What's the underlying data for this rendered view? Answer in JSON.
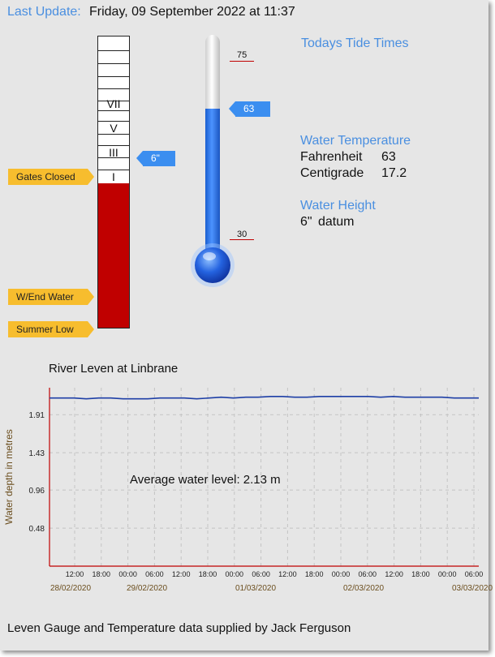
{
  "header": {
    "last_update_label": "Last Update:",
    "last_update_value": "Friday, 09 September 2022 at 11:37"
  },
  "gauge": {
    "roman_marks": [
      "VII",
      "V",
      "III",
      "I"
    ],
    "level_label": "6\"",
    "fill_fraction": 0.497,
    "tags": {
      "gates_closed": "Gates Closed",
      "wend_water": "W/End Water",
      "summer_low": "Summer Low"
    },
    "colors": {
      "fill": "#c00000",
      "tag": "#f7bd2e",
      "pointer": "#3b8ef0"
    }
  },
  "thermometer": {
    "value": 63,
    "value_label": "63",
    "scale_max": "75",
    "scale_min": "30"
  },
  "info": {
    "tide_heading": "Todays Tide Times",
    "water_temp_heading": "Water Temperature",
    "fahrenheit_label": "Fahrenheit",
    "fahrenheit_value": "63",
    "centigrade_label": "Centigrade",
    "centigrade_value": "17.2",
    "water_height_heading": "Water Height",
    "water_height_value": "6\"",
    "water_height_unit": "datum"
  },
  "chart_data": {
    "type": "line",
    "title": "River Leven at Linbrane",
    "ylabel": "Water depth in metres",
    "xlabel": "",
    "y_ticks": [
      0.48,
      0.96,
      1.43,
      1.91
    ],
    "ylim": [
      0,
      2.25
    ],
    "time_ticks": [
      "12:00",
      "18:00",
      "00:00",
      "06:00",
      "12:00",
      "18:00",
      "00:00",
      "06:00",
      "12:00",
      "18:00",
      "00:00",
      "06:00",
      "12:00",
      "18:00",
      "00:00",
      "06:00"
    ],
    "date_ticks": [
      "28/02/2020",
      "29/02/2020",
      "01/03/2020",
      "02/03/2020",
      "03/03/2020"
    ],
    "annotation": "Average water level: 2.13 m",
    "grid": true,
    "series": [
      {
        "values": [
          2.12,
          2.12,
          2.12,
          2.11,
          2.12,
          2.12,
          2.11,
          2.11,
          2.11,
          2.12,
          2.12,
          2.12,
          2.11,
          2.12,
          2.13,
          2.12,
          2.13,
          2.13,
          2.14,
          2.14,
          2.13,
          2.13,
          2.14,
          2.14,
          2.14,
          2.14,
          2.14,
          2.13,
          2.14,
          2.13,
          2.13,
          2.13,
          2.13,
          2.12,
          2.12,
          2.12
        ]
      }
    ],
    "color": "#1e3fa6"
  },
  "footer": "Leven Gauge and Temperature data supplied by Jack Ferguson"
}
